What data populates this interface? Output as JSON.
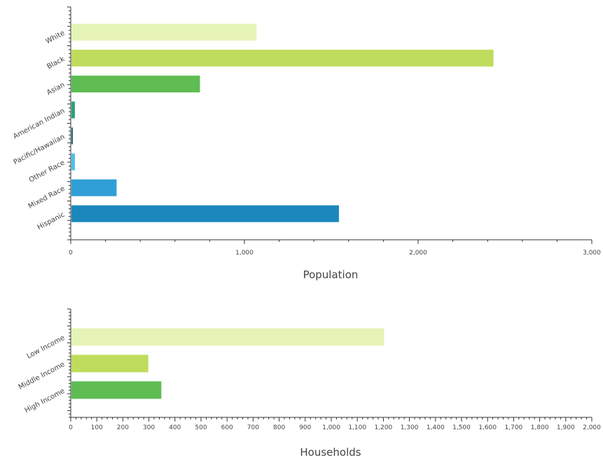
{
  "chart_data": [
    {
      "type": "bar",
      "orientation": "horizontal",
      "categories": [
        "White",
        "Black",
        "Asian",
        "American Indian",
        "Pacific/Hawaiian",
        "Other Race",
        "Mixed Race",
        "Hispanic"
      ],
      "values": [
        1065,
        2430,
        740,
        20,
        8,
        20,
        260,
        1540
      ],
      "colors": [
        "#e5f4b6",
        "#bfdc5d",
        "#5ebc52",
        "#2aa17e",
        "#1f6b6e",
        "#4cc1ea",
        "#2f9fd6",
        "#1a88bd"
      ],
      "xlabel": "Population",
      "xlim": [
        0,
        3000
      ],
      "xticks": [
        "0",
        "1,000",
        "2,000",
        "3,000"
      ],
      "grid": false,
      "legend": "none"
    },
    {
      "type": "bar",
      "orientation": "horizontal",
      "categories": [
        "Low Income",
        "Middle Income",
        "High Income"
      ],
      "values": [
        1200,
        295,
        345
      ],
      "colors": [
        "#e5f4b6",
        "#bfdc5d",
        "#5ebc52"
      ],
      "xlabel": "Households",
      "xlim": [
        0,
        2000
      ],
      "xticks": [
        "0",
        "100",
        "200",
        "300",
        "400",
        "500",
        "600",
        "700",
        "800",
        "900",
        "1,000",
        "1,100",
        "1,200",
        "1,300",
        "1,400",
        "1,500",
        "1,600",
        "1,700",
        "1,800",
        "1,900",
        "2,000"
      ],
      "grid": false,
      "legend": "none"
    }
  ]
}
